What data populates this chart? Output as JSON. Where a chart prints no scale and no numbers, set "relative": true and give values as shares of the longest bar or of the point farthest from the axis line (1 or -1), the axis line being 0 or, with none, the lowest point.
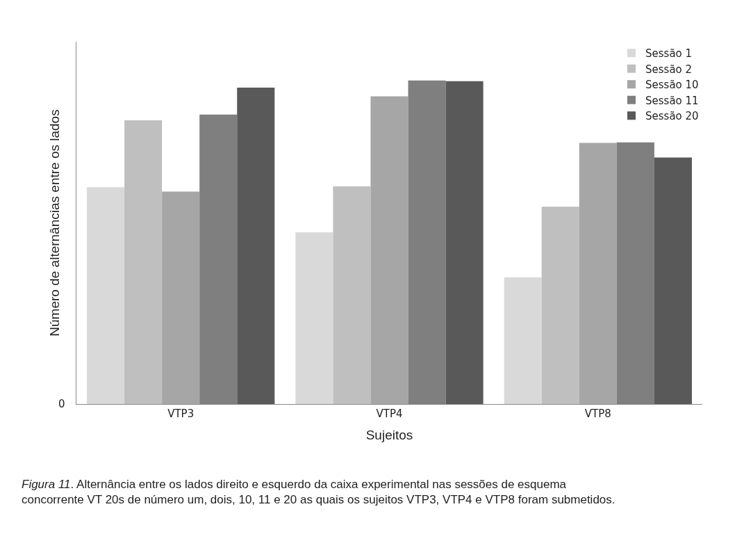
{
  "chart_data": {
    "type": "bar",
    "relative": true,
    "xlabel": "Sujeitos",
    "ylabel": "Número de alternâncias entre os lados",
    "categories": [
      "VTP3",
      "VTP4",
      "VTP8"
    ],
    "series": [
      {
        "name": "Sessão 1",
        "color": "#d9d9d9",
        "values": [
          0.67,
          0.531,
          0.392
        ]
      },
      {
        "name": "Sessão 2",
        "color": "#bfbfbf",
        "values": [
          0.877,
          0.673,
          0.61
        ]
      },
      {
        "name": "Sessão 10",
        "color": "#a6a6a6",
        "values": [
          0.657,
          0.951,
          0.807
        ]
      },
      {
        "name": "Sessão 11",
        "color": "#7f7f7f",
        "values": [
          0.895,
          1.0,
          0.809
        ]
      },
      {
        "name": "Sessão 20",
        "color": "#595959",
        "values": [
          0.978,
          0.998,
          0.762
        ]
      }
    ],
    "legend": "top right",
    "annotations": [
      "0",
      "Figura 11. Alternância entre os lados direito e esquerdo da caixa experimental nas sessões de esquema concorrente VT 20s de número um, dois, 10, 11 e 20 as quais os sujeitos VTP3, VTP4 e VTP8 foram submetidos."
    ]
  }
}
